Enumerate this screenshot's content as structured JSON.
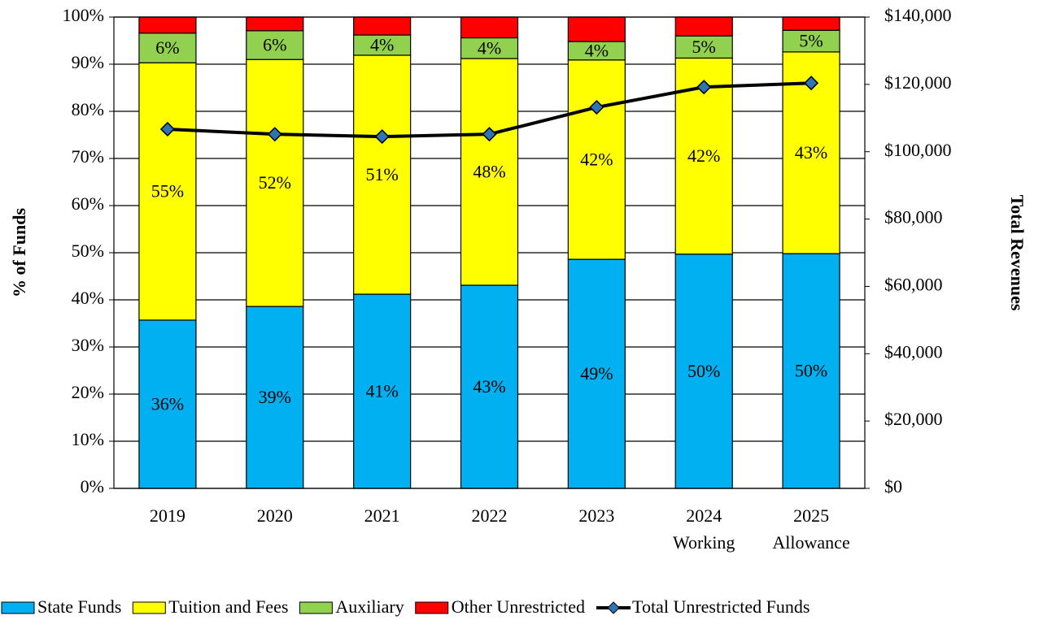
{
  "chart_data": {
    "type": "bar",
    "stacked": true,
    "categories": [
      "2019",
      "2020",
      "2021",
      "2022",
      "2023",
      "2024",
      "2025"
    ],
    "category_sublabels": [
      null,
      null,
      null,
      null,
      null,
      "Working",
      "Allowance"
    ],
    "ylabel": "% of Funds",
    "y2label": "Total Revenues",
    "ylim": [
      0,
      100
    ],
    "yticks": [
      {
        "value": 0,
        "label": "0%"
      },
      {
        "value": 10,
        "label": "10%"
      },
      {
        "value": 20,
        "label": "20%"
      },
      {
        "value": 30,
        "label": "30%"
      },
      {
        "value": 40,
        "label": "40%"
      },
      {
        "value": 50,
        "label": "50%"
      },
      {
        "value": 60,
        "label": "60%"
      },
      {
        "value": 70,
        "label": "70%"
      },
      {
        "value": 80,
        "label": "80%"
      },
      {
        "value": 90,
        "label": "90%"
      },
      {
        "value": 100,
        "label": "100%"
      }
    ],
    "y2lim": [
      0,
      140000
    ],
    "y2ticks": [
      {
        "value": 0,
        "label": "$0"
      },
      {
        "value": 20000,
        "label": "$20,000"
      },
      {
        "value": 40000,
        "label": "$40,000"
      },
      {
        "value": 60000,
        "label": "$60,000"
      },
      {
        "value": 80000,
        "label": "$80,000"
      },
      {
        "value": 100000,
        "label": "$100,000"
      },
      {
        "value": 120000,
        "label": "$120,000"
      },
      {
        "value": 140000,
        "label": "$140,000"
      }
    ],
    "grid": true,
    "legend": "bottom",
    "series": [
      {
        "name": "State Funds",
        "color": "#00b0f0",
        "values": [
          35.7,
          38.6,
          41.2,
          43.1,
          48.6,
          49.7,
          49.8
        ],
        "value_labels": [
          "36%",
          "39%",
          "41%",
          "43%",
          "49%",
          "50%",
          "50%"
        ]
      },
      {
        "name": "Tuition and Fees",
        "color": "#ffff00",
        "values": [
          54.6,
          52.4,
          50.7,
          48.1,
          42.3,
          41.6,
          42.8
        ],
        "value_labels": [
          "55%",
          "52%",
          "51%",
          "48%",
          "42%",
          "42%",
          "43%"
        ]
      },
      {
        "name": "Auxiliary",
        "color": "#92d050",
        "values": [
          6.3,
          6.1,
          4.3,
          4.4,
          3.9,
          4.7,
          4.6
        ],
        "value_labels": [
          "6%",
          "6%",
          "4%",
          "4%",
          "4%",
          "5%",
          "5%"
        ]
      },
      {
        "name": "Other Unrestricted",
        "color": "#ff0000",
        "values": [
          3.4,
          2.9,
          3.8,
          4.4,
          5.2,
          4.0,
          2.8
        ]
      },
      {
        "name": "Total Unrestricted Funds",
        "type": "line",
        "axis": "y2",
        "color": "#000000",
        "marker_color": "#2e75b6",
        "values": [
          106700,
          105200,
          104500,
          105200,
          113200,
          119200,
          120400
        ]
      }
    ]
  }
}
